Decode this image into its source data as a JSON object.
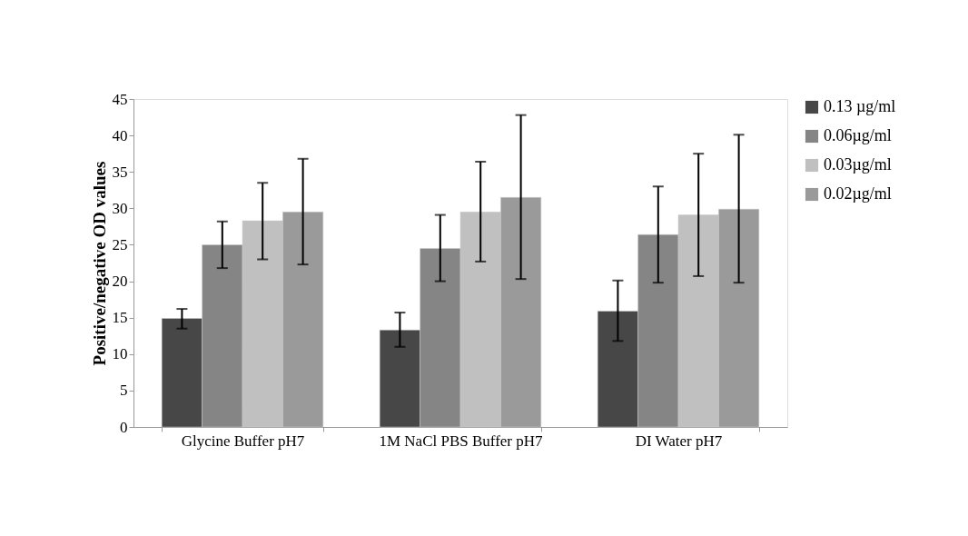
{
  "chart_data": {
    "type": "bar",
    "ylabel": "Positive/negative OD values",
    "categories": [
      "Glycine Buffer pH7",
      "1M NaCl PBS Buffer pH7",
      "DI Water pH7"
    ],
    "series": [
      {
        "name": "0.13 µg/ml",
        "color": "#474747",
        "values": [
          14.9,
          13.3,
          15.9
        ],
        "errors": [
          [
            13.5,
            16.2
          ],
          [
            11.0,
            15.7
          ],
          [
            11.8,
            20.1
          ]
        ]
      },
      {
        "name": "0.06µg/ml",
        "color": "#858585",
        "values": [
          25.0,
          24.5,
          26.4
        ],
        "errors": [
          [
            21.8,
            28.2
          ],
          [
            20.0,
            29.1
          ],
          [
            19.8,
            33.0
          ]
        ]
      },
      {
        "name": "0.03µg/ml",
        "color": "#c0c0c0",
        "values": [
          28.3,
          29.5,
          29.1
        ],
        "errors": [
          [
            23.0,
            33.5
          ],
          [
            22.7,
            36.4
          ],
          [
            20.7,
            37.5
          ]
        ]
      },
      {
        "name": "0.02µg/ml",
        "color": "#9a9a9a",
        "values": [
          29.5,
          31.5,
          29.9
        ],
        "errors": [
          [
            22.3,
            36.8
          ],
          [
            20.3,
            42.8
          ],
          [
            19.8,
            40.1
          ]
        ]
      }
    ],
    "ylim": [
      0,
      45
    ],
    "yticks": [
      0,
      5,
      10,
      15,
      20,
      25,
      30,
      35,
      40,
      45
    ],
    "grid": false,
    "legend": "right"
  }
}
